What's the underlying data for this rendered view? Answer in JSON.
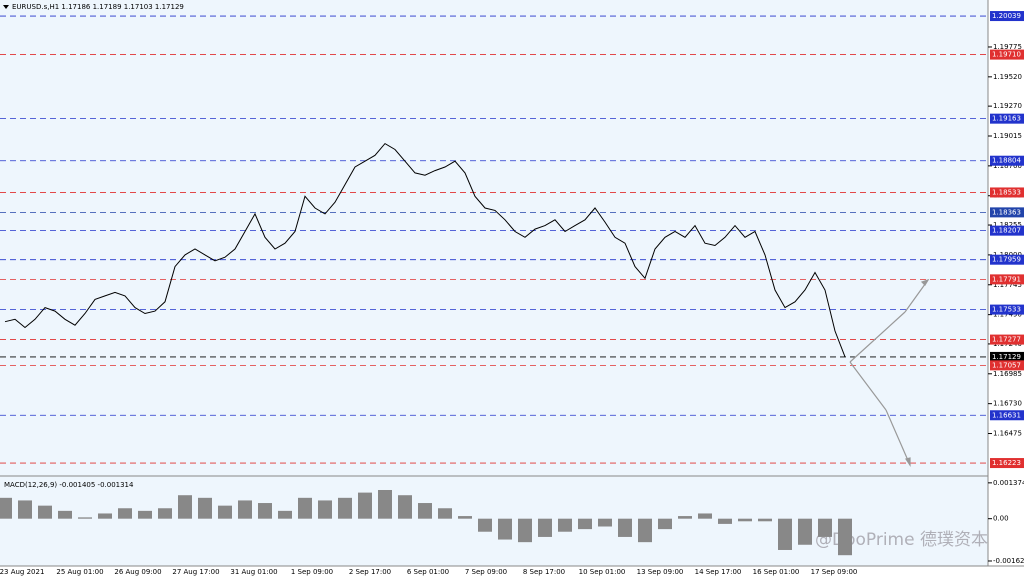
{
  "header": "EURUSD.s,H1  1.17186 1.17189 1.17103 1.17129",
  "watermark": "@DooPrime 德璞资本",
  "x_labels": [
    "23 Aug 2021",
    "25 Aug 01:00",
    "26 Aug 09:00",
    "27 Aug 17:00",
    "31 Aug 01:00",
    "1 Sep 09:00",
    "2 Sep 17:00",
    "6 Sep 01:00",
    "7 Sep 09:00",
    "8 Sep 17:00",
    "10 Sep 01:00",
    "13 Sep 09:00",
    "14 Sep 17:00",
    "16 Sep 01:00",
    "17 Sep 09:00"
  ],
  "chart_data": [
    {
      "type": "line",
      "color": "#000000",
      "values": [
        1.1743,
        1.1745,
        1.1738,
        1.1745,
        1.1755,
        1.1752,
        1.1745,
        1.174,
        1.175,
        1.1762,
        1.1765,
        1.1768,
        1.1765,
        1.1755,
        1.175,
        1.1752,
        1.176,
        1.179,
        1.18,
        1.1805,
        1.18,
        1.1795,
        1.1798,
        1.1805,
        1.182,
        1.1835,
        1.1815,
        1.1805,
        1.181,
        1.182,
        1.185,
        1.184,
        1.1835,
        1.1845,
        1.186,
        1.1875,
        1.188,
        1.1885,
        1.1895,
        1.189,
        1.188,
        1.187,
        1.1868,
        1.1872,
        1.1875,
        1.188,
        1.187,
        1.185,
        1.184,
        1.1838,
        1.183,
        1.182,
        1.1815,
        1.1822,
        1.1825,
        1.183,
        1.182,
        1.1825,
        1.183,
        1.184,
        1.1828,
        1.1815,
        1.181,
        1.179,
        1.178,
        1.1805,
        1.1815,
        1.182,
        1.1815,
        1.1825,
        1.181,
        1.1808,
        1.1815,
        1.1825,
        1.1815,
        1.182,
        1.18,
        1.177,
        1.1755,
        1.176,
        1.177,
        1.1785,
        1.177,
        1.1735,
        1.1713
      ],
      "ylim": [
        1.16121,
        1.20176
      ],
      "yticks": [
        1.19775,
        {
          "value": 1.1952,
          "label": "1.19520"
        },
        {
          "value": 1.1927,
          "label": "1.19270"
        },
        1.19015,
        {
          "value": 1.1876,
          "label": "1.18760"
        },
        1.18505,
        1.18255,
        {
          "value": 1.18,
          "label": "1.18000"
        },
        1.17745,
        {
          "value": 1.1749,
          "label": "1.17490"
        },
        {
          "value": 1.1724,
          "label": "1.17240"
        },
        1.16985,
        {
          "value": 1.1673,
          "label": "1.16730"
        },
        1.16475
      ],
      "levels": [
        {
          "value": 1.20039,
          "color": "#2233cc"
        },
        {
          "value": 1.1971,
          "label": "1.19710",
          "color": "#e03030"
        },
        {
          "value": 1.19163,
          "color": "#2233cc"
        },
        {
          "value": 1.18804,
          "color": "#2233cc"
        },
        {
          "value": 1.18533,
          "color": "#e03030"
        },
        {
          "value": 1.18363,
          "color": "#2244aa"
        },
        {
          "value": 1.18207,
          "color": "#2233cc"
        },
        {
          "value": 1.17959,
          "color": "#2233cc"
        },
        {
          "value": 1.17791,
          "color": "#e03030"
        },
        {
          "value": 1.17533,
          "color": "#2233cc"
        },
        {
          "value": 1.17277,
          "color": "#e03030"
        },
        {
          "value": 1.17129,
          "color": "#000000"
        },
        {
          "value": 1.17057,
          "color": "#e03030"
        },
        {
          "value": 1.16631,
          "color": "#2233cc"
        },
        {
          "value": 1.16223,
          "color": "#e03030"
        }
      ]
    },
    {
      "type": "bar",
      "title": "MACD(12,26,9) -0.001405 -0.001314",
      "color": "#888888",
      "values": [
        0.0008,
        0.0007,
        0.0005,
        0.0003,
        5e-05,
        0.0002,
        0.0004,
        0.0003,
        0.0004,
        0.0009,
        0.0008,
        0.0005,
        0.0007,
        0.0006,
        0.0003,
        0.0008,
        0.0007,
        0.0008,
        0.001,
        0.0011,
        0.0009,
        0.0006,
        0.0004,
        0.0001,
        -0.0005,
        -0.0008,
        -0.0009,
        -0.0007,
        -0.0005,
        -0.0004,
        -0.0003,
        -0.0007,
        -0.0009,
        -0.0004,
        0.0001,
        0.0002,
        -0.0002,
        -0.0001,
        -0.0001,
        -0.0012,
        -0.001,
        -0.0007,
        -0.0014
      ],
      "ylim": [
        -0.001776,
        0.00156
      ],
      "yticks": [
        0.001374,
        {
          "value": 0,
          "label": "0.00"
        },
        -0.001622
      ]
    }
  ]
}
